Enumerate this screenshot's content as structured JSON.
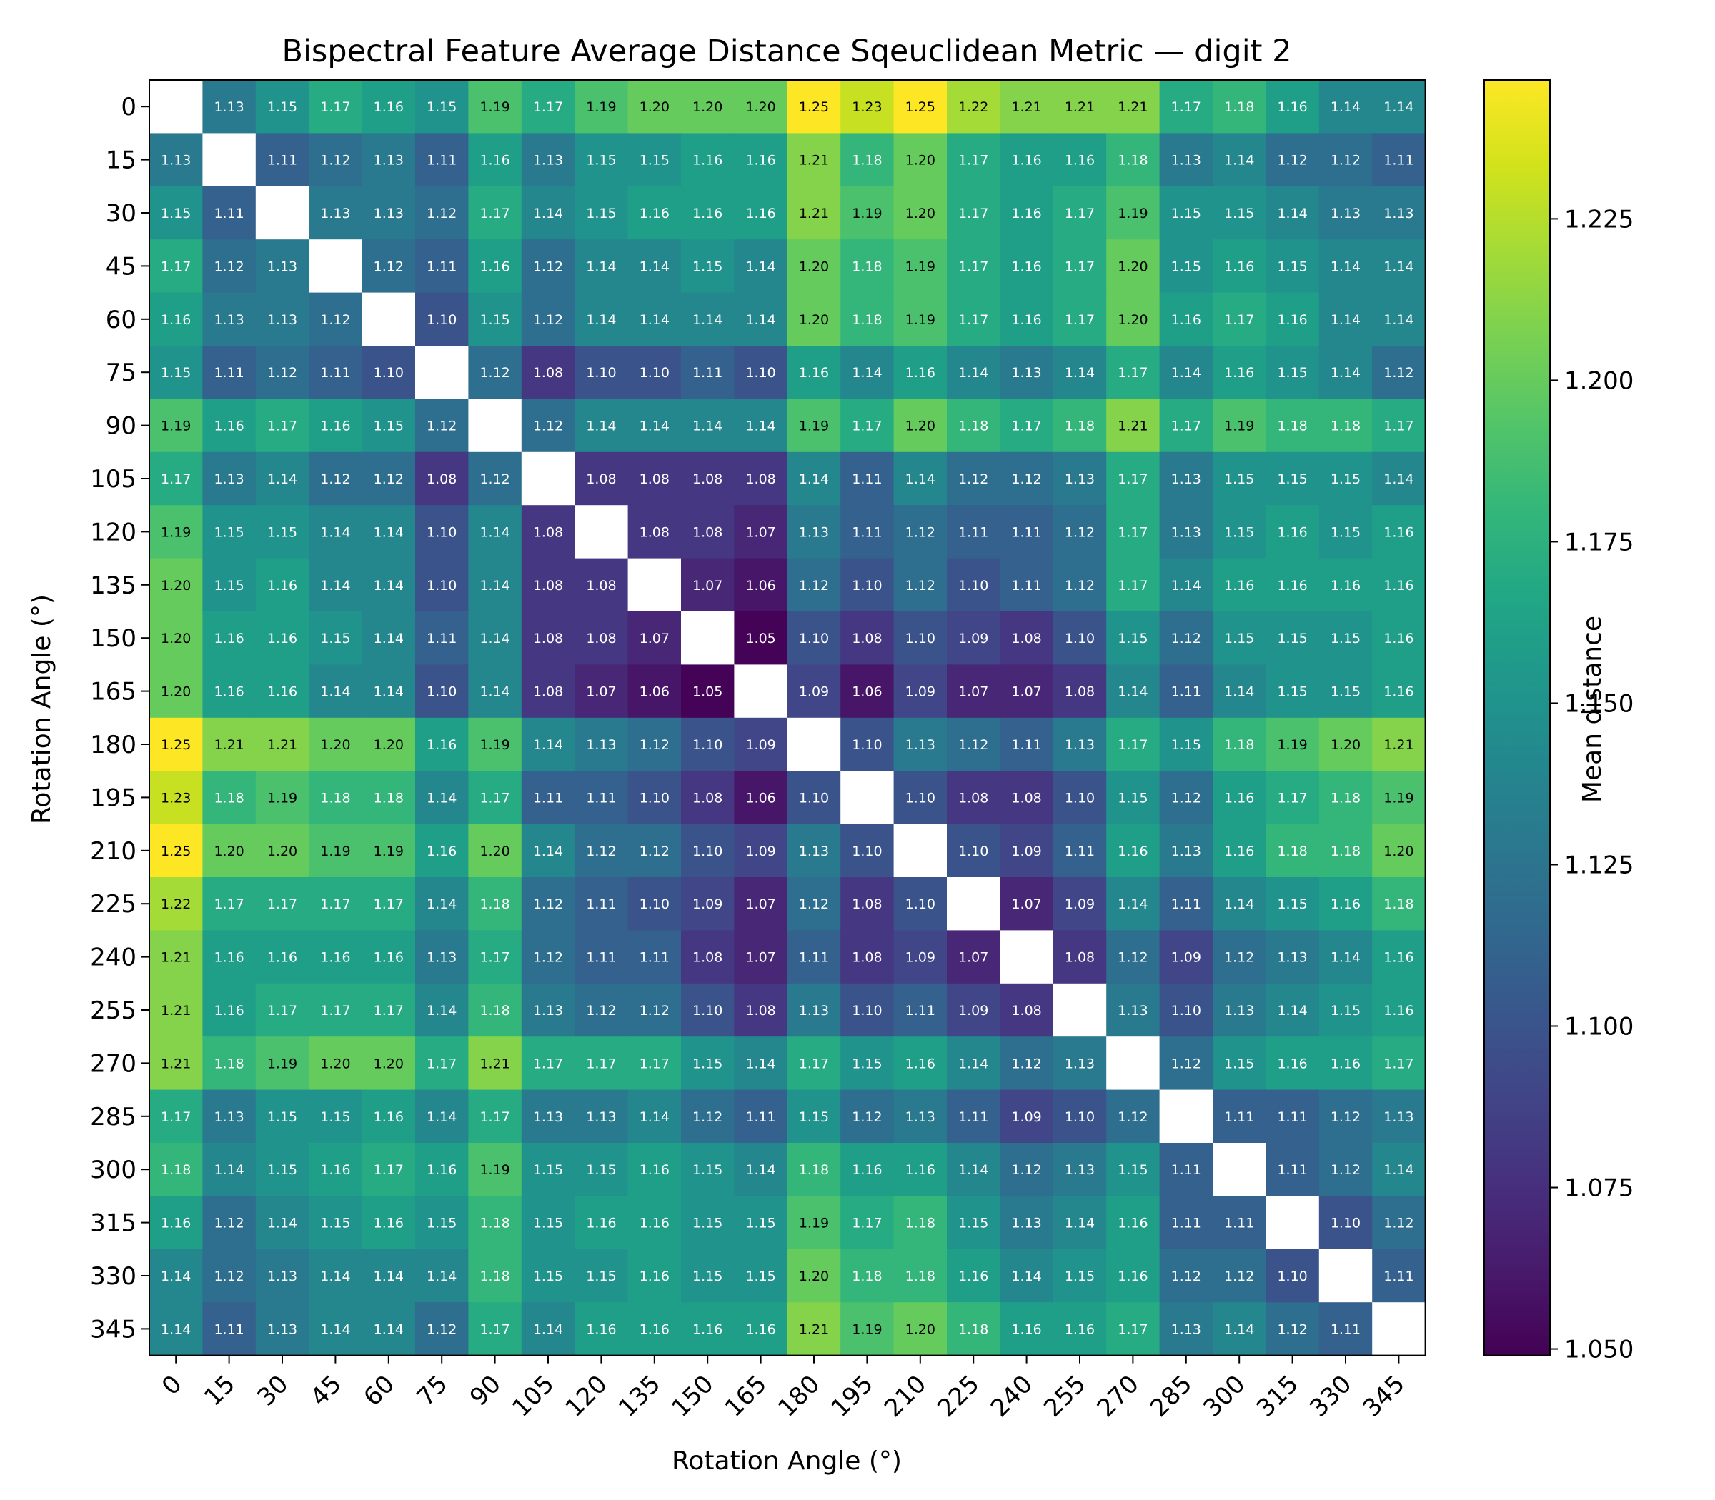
{
  "chart_data": {
    "type": "heatmap",
    "title": "Bispectral Feature Average Distance Sqeuclidean Metric — digit 2",
    "xlabel": "Rotation Angle (°)",
    "ylabel": "Rotation Angle (°)",
    "colorbar_label": "Mean distance",
    "colormap": "viridis",
    "vmin": 1.049,
    "vmax": 1.2465,
    "colorbar_ticks": [
      1.05,
      1.075,
      1.1,
      1.125,
      1.15,
      1.175,
      1.2,
      1.225
    ],
    "colorbar_tick_labels": [
      "1.050",
      "1.075",
      "1.100",
      "1.125",
      "1.150",
      "1.175",
      "1.200",
      "1.225"
    ],
    "diagonal": "masked",
    "categories": [
      "0",
      "15",
      "30",
      "45",
      "60",
      "75",
      "90",
      "105",
      "120",
      "135",
      "150",
      "165",
      "180",
      "195",
      "210",
      "225",
      "240",
      "255",
      "270",
      "285",
      "300",
      "315",
      "330",
      "345"
    ],
    "values": [
      [
        null,
        1.13,
        1.15,
        1.17,
        1.16,
        1.15,
        1.19,
        1.17,
        1.19,
        1.2,
        1.2,
        1.2,
        1.25,
        1.23,
        1.25,
        1.22,
        1.21,
        1.21,
        1.21,
        1.17,
        1.18,
        1.16,
        1.14,
        1.14
      ],
      [
        1.13,
        null,
        1.11,
        1.12,
        1.13,
        1.11,
        1.16,
        1.13,
        1.15,
        1.15,
        1.16,
        1.16,
        1.21,
        1.18,
        1.2,
        1.17,
        1.16,
        1.16,
        1.18,
        1.13,
        1.14,
        1.12,
        1.12,
        1.11
      ],
      [
        1.15,
        1.11,
        null,
        1.13,
        1.13,
        1.12,
        1.17,
        1.14,
        1.15,
        1.16,
        1.16,
        1.16,
        1.21,
        1.19,
        1.2,
        1.17,
        1.16,
        1.17,
        1.19,
        1.15,
        1.15,
        1.14,
        1.13,
        1.13
      ],
      [
        1.17,
        1.12,
        1.13,
        null,
        1.12,
        1.11,
        1.16,
        1.12,
        1.14,
        1.14,
        1.15,
        1.14,
        1.2,
        1.18,
        1.19,
        1.17,
        1.16,
        1.17,
        1.2,
        1.15,
        1.16,
        1.15,
        1.14,
        1.14
      ],
      [
        1.16,
        1.13,
        1.13,
        1.12,
        null,
        1.1,
        1.15,
        1.12,
        1.14,
        1.14,
        1.14,
        1.14,
        1.2,
        1.18,
        1.19,
        1.17,
        1.16,
        1.17,
        1.2,
        1.16,
        1.17,
        1.16,
        1.14,
        1.14
      ],
      [
        1.15,
        1.11,
        1.12,
        1.11,
        1.1,
        null,
        1.12,
        1.08,
        1.1,
        1.1,
        1.11,
        1.1,
        1.16,
        1.14,
        1.16,
        1.14,
        1.13,
        1.14,
        1.17,
        1.14,
        1.16,
        1.15,
        1.14,
        1.12
      ],
      [
        1.19,
        1.16,
        1.17,
        1.16,
        1.15,
        1.12,
        null,
        1.12,
        1.14,
        1.14,
        1.14,
        1.14,
        1.19,
        1.17,
        1.2,
        1.18,
        1.17,
        1.18,
        1.21,
        1.17,
        1.19,
        1.18,
        1.18,
        1.17
      ],
      [
        1.17,
        1.13,
        1.14,
        1.12,
        1.12,
        1.08,
        1.12,
        null,
        1.08,
        1.08,
        1.08,
        1.08,
        1.14,
        1.11,
        1.14,
        1.12,
        1.12,
        1.13,
        1.17,
        1.13,
        1.15,
        1.15,
        1.15,
        1.14
      ],
      [
        1.19,
        1.15,
        1.15,
        1.14,
        1.14,
        1.1,
        1.14,
        1.08,
        null,
        1.08,
        1.08,
        1.07,
        1.13,
        1.11,
        1.12,
        1.11,
        1.11,
        1.12,
        1.17,
        1.13,
        1.15,
        1.16,
        1.15,
        1.16
      ],
      [
        1.2,
        1.15,
        1.16,
        1.14,
        1.14,
        1.1,
        1.14,
        1.08,
        1.08,
        null,
        1.07,
        1.06,
        1.12,
        1.1,
        1.12,
        1.1,
        1.11,
        1.12,
        1.17,
        1.14,
        1.16,
        1.16,
        1.16,
        1.16
      ],
      [
        1.2,
        1.16,
        1.16,
        1.15,
        1.14,
        1.11,
        1.14,
        1.08,
        1.08,
        1.07,
        null,
        1.05,
        1.1,
        1.08,
        1.1,
        1.09,
        1.08,
        1.1,
        1.15,
        1.12,
        1.15,
        1.15,
        1.15,
        1.16
      ],
      [
        1.2,
        1.16,
        1.16,
        1.14,
        1.14,
        1.1,
        1.14,
        1.08,
        1.07,
        1.06,
        1.05,
        null,
        1.09,
        1.06,
        1.09,
        1.07,
        1.07,
        1.08,
        1.14,
        1.11,
        1.14,
        1.15,
        1.15,
        1.16
      ],
      [
        1.25,
        1.21,
        1.21,
        1.2,
        1.2,
        1.16,
        1.19,
        1.14,
        1.13,
        1.12,
        1.1,
        1.09,
        null,
        1.1,
        1.13,
        1.12,
        1.11,
        1.13,
        1.17,
        1.15,
        1.18,
        1.19,
        1.2,
        1.21
      ],
      [
        1.23,
        1.18,
        1.19,
        1.18,
        1.18,
        1.14,
        1.17,
        1.11,
        1.11,
        1.1,
        1.08,
        1.06,
        1.1,
        null,
        1.1,
        1.08,
        1.08,
        1.1,
        1.15,
        1.12,
        1.16,
        1.17,
        1.18,
        1.19
      ],
      [
        1.25,
        1.2,
        1.2,
        1.19,
        1.19,
        1.16,
        1.2,
        1.14,
        1.12,
        1.12,
        1.1,
        1.09,
        1.13,
        1.1,
        null,
        1.1,
        1.09,
        1.11,
        1.16,
        1.13,
        1.16,
        1.18,
        1.18,
        1.2
      ],
      [
        1.22,
        1.17,
        1.17,
        1.17,
        1.17,
        1.14,
        1.18,
        1.12,
        1.11,
        1.1,
        1.09,
        1.07,
        1.12,
        1.08,
        1.1,
        null,
        1.07,
        1.09,
        1.14,
        1.11,
        1.14,
        1.15,
        1.16,
        1.18
      ],
      [
        1.21,
        1.16,
        1.16,
        1.16,
        1.16,
        1.13,
        1.17,
        1.12,
        1.11,
        1.11,
        1.08,
        1.07,
        1.11,
        1.08,
        1.09,
        1.07,
        null,
        1.08,
        1.12,
        1.09,
        1.12,
        1.13,
        1.14,
        1.16
      ],
      [
        1.21,
        1.16,
        1.17,
        1.17,
        1.17,
        1.14,
        1.18,
        1.13,
        1.12,
        1.12,
        1.1,
        1.08,
        1.13,
        1.1,
        1.11,
        1.09,
        1.08,
        null,
        1.13,
        1.1,
        1.13,
        1.14,
        1.15,
        1.16
      ],
      [
        1.21,
        1.18,
        1.19,
        1.2,
        1.2,
        1.17,
        1.21,
        1.17,
        1.17,
        1.17,
        1.15,
        1.14,
        1.17,
        1.15,
        1.16,
        1.14,
        1.12,
        1.13,
        null,
        1.12,
        1.15,
        1.16,
        1.16,
        1.17
      ],
      [
        1.17,
        1.13,
        1.15,
        1.15,
        1.16,
        1.14,
        1.17,
        1.13,
        1.13,
        1.14,
        1.12,
        1.11,
        1.15,
        1.12,
        1.13,
        1.11,
        1.09,
        1.1,
        1.12,
        null,
        1.11,
        1.11,
        1.12,
        1.13
      ],
      [
        1.18,
        1.14,
        1.15,
        1.16,
        1.17,
        1.16,
        1.19,
        1.15,
        1.15,
        1.16,
        1.15,
        1.14,
        1.18,
        1.16,
        1.16,
        1.14,
        1.12,
        1.13,
        1.15,
        1.11,
        null,
        1.11,
        1.12,
        1.14
      ],
      [
        1.16,
        1.12,
        1.14,
        1.15,
        1.16,
        1.15,
        1.18,
        1.15,
        1.16,
        1.16,
        1.15,
        1.15,
        1.19,
        1.17,
        1.18,
        1.15,
        1.13,
        1.14,
        1.16,
        1.11,
        1.11,
        null,
        1.1,
        1.12
      ],
      [
        1.14,
        1.12,
        1.13,
        1.14,
        1.14,
        1.14,
        1.18,
        1.15,
        1.15,
        1.16,
        1.15,
        1.15,
        1.2,
        1.18,
        1.18,
        1.16,
        1.14,
        1.15,
        1.16,
        1.12,
        1.12,
        1.1,
        null,
        1.11
      ],
      [
        1.14,
        1.11,
        1.13,
        1.14,
        1.14,
        1.12,
        1.17,
        1.14,
        1.16,
        1.16,
        1.16,
        1.16,
        1.21,
        1.19,
        1.2,
        1.18,
        1.16,
        1.16,
        1.17,
        1.13,
        1.14,
        1.12,
        1.11,
        null
      ]
    ]
  }
}
